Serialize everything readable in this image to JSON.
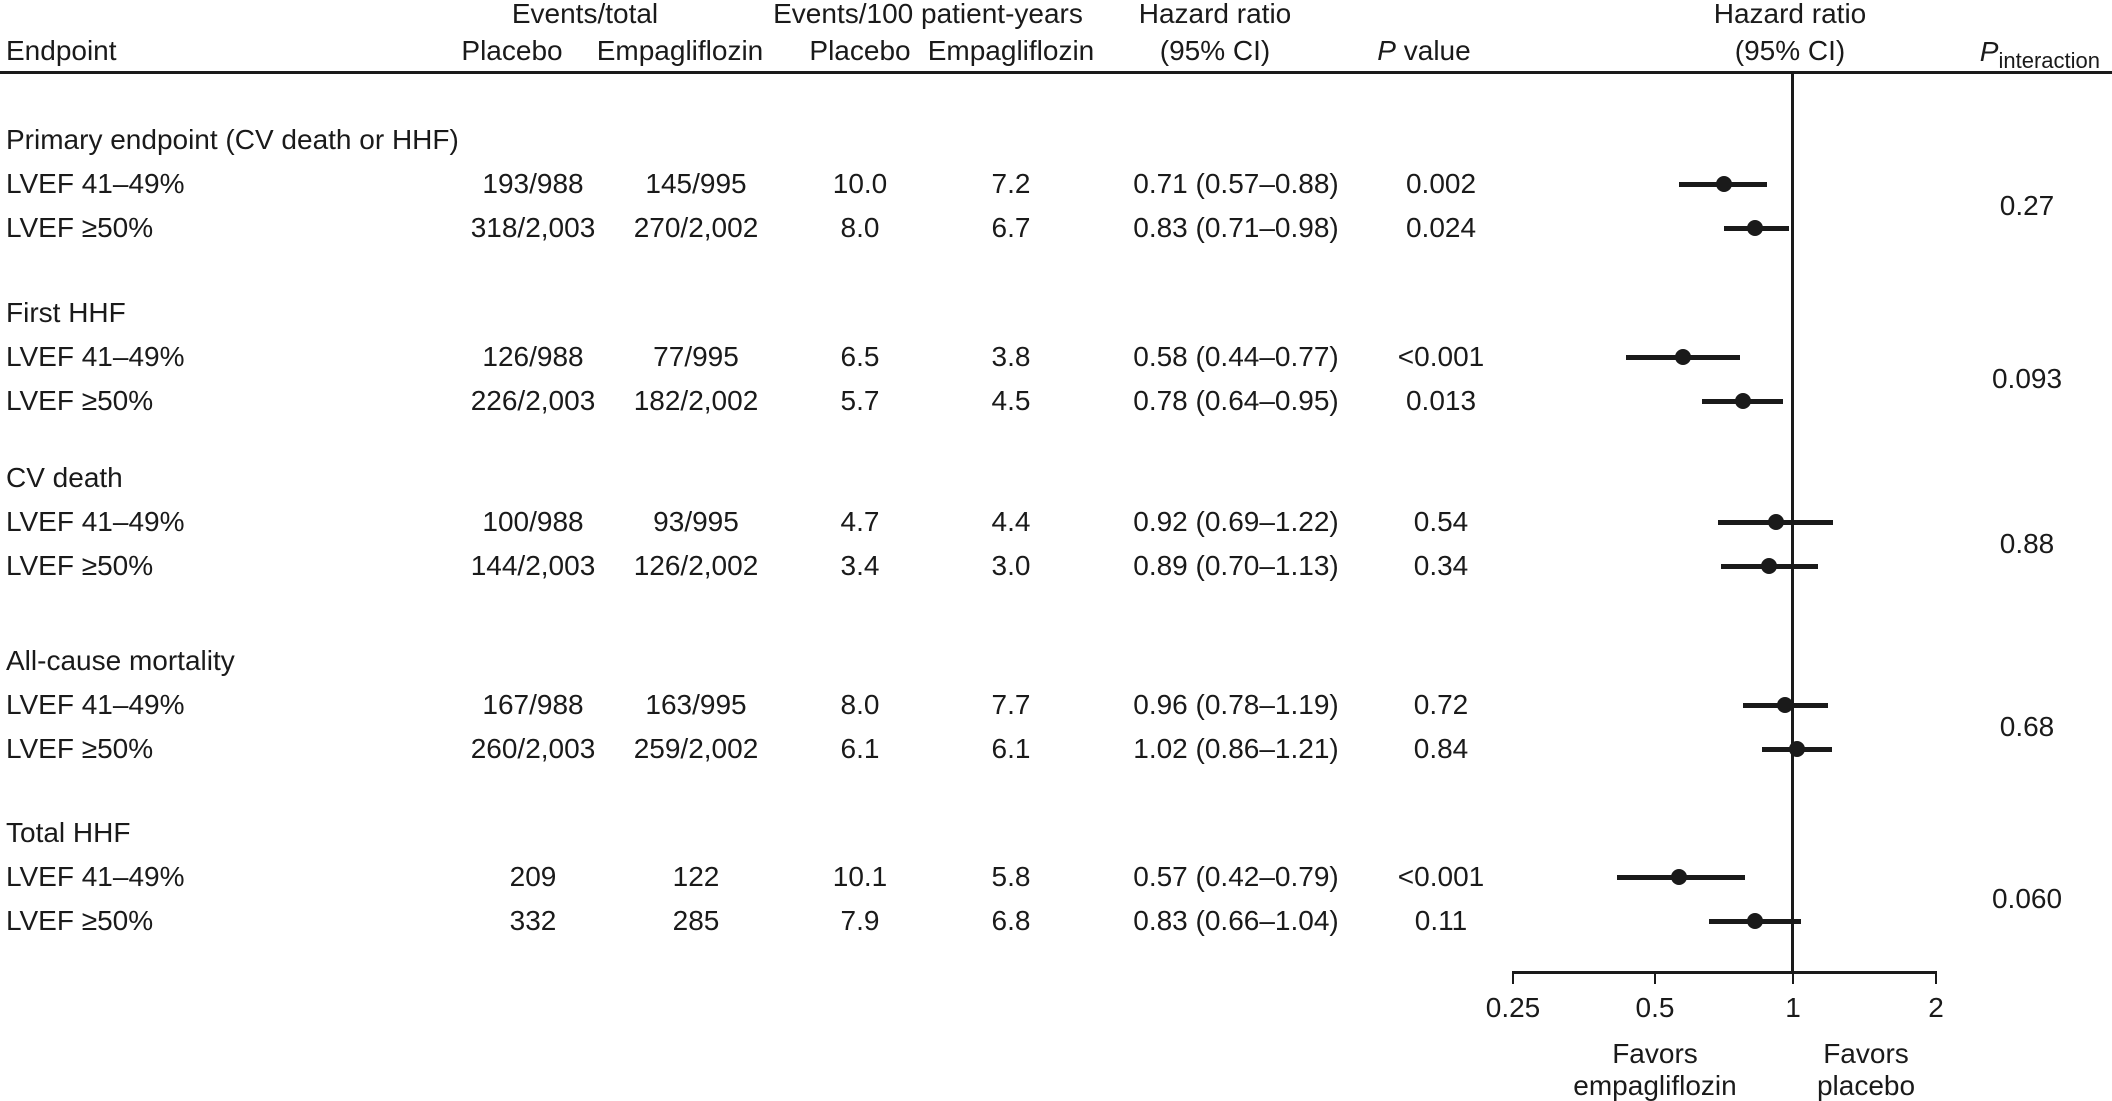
{
  "header": {
    "endpoint": "Endpoint",
    "events_total_group": "Events/total",
    "events_rate_group": "Events/100 patient-years",
    "placebo": "Placebo",
    "empagliflozin": "Empagliflozin",
    "hr_line1": "Hazard ratio",
    "hr_line2": "(95% CI)",
    "p_value": {
      "p": "P",
      "rest": " value"
    },
    "p_interaction": {
      "p": "P",
      "sub": "interaction"
    }
  },
  "chart_data": {
    "type": "forest",
    "plot_title_line1": "Hazard ratio",
    "plot_title_line2": "(95% CI)",
    "x_axis": {
      "scale": "log2",
      "ticks": [
        0.25,
        0.5,
        1,
        2
      ],
      "tick_labels": [
        "0.25",
        "0.5",
        "1",
        "2"
      ],
      "range": [
        0.25,
        2
      ],
      "reference_line": 1
    },
    "favors_left": "Favors empagliflozin",
    "favors_right": "Favors placebo",
    "sections": [
      {
        "title": "Primary endpoint (CV death or HHF)",
        "p_interaction": "0.27",
        "rows": [
          {
            "label": "LVEF 41–49%",
            "events_total_placebo": "193/988",
            "events_total_empagliflozin": "145/995",
            "rate_placebo": "10.0",
            "rate_empagliflozin": "7.2",
            "hr_text": "0.71 (0.57–0.88)",
            "p_value": "0.002",
            "hr": 0.71,
            "ci_low": 0.57,
            "ci_high": 0.88
          },
          {
            "label": "LVEF ≥50%",
            "events_total_placebo": "318/2,003",
            "events_total_empagliflozin": "270/2,002",
            "rate_placebo": "8.0",
            "rate_empagliflozin": "6.7",
            "hr_text": "0.83 (0.71–0.98)",
            "p_value": "0.024",
            "hr": 0.83,
            "ci_low": 0.71,
            "ci_high": 0.98
          }
        ]
      },
      {
        "title": "First HHF",
        "p_interaction": "0.093",
        "rows": [
          {
            "label": "LVEF 41–49%",
            "events_total_placebo": "126/988",
            "events_total_empagliflozin": "77/995",
            "rate_placebo": "6.5",
            "rate_empagliflozin": "3.8",
            "hr_text": "0.58 (0.44–0.77)",
            "p_value": "<0.001",
            "hr": 0.58,
            "ci_low": 0.44,
            "ci_high": 0.77
          },
          {
            "label": "LVEF ≥50%",
            "events_total_placebo": "226/2,003",
            "events_total_empagliflozin": "182/2,002",
            "rate_placebo": "5.7",
            "rate_empagliflozin": "4.5",
            "hr_text": "0.78 (0.64–0.95)",
            "p_value": "0.013",
            "hr": 0.78,
            "ci_low": 0.64,
            "ci_high": 0.95
          }
        ]
      },
      {
        "title": "CV death",
        "p_interaction": "0.88",
        "rows": [
          {
            "label": "LVEF 41–49%",
            "events_total_placebo": "100/988",
            "events_total_empagliflozin": "93/995",
            "rate_placebo": "4.7",
            "rate_empagliflozin": "4.4",
            "hr_text": "0.92 (0.69–1.22)",
            "p_value": "0.54",
            "hr": 0.92,
            "ci_low": 0.69,
            "ci_high": 1.22
          },
          {
            "label": "LVEF ≥50%",
            "events_total_placebo": "144/2,003",
            "events_total_empagliflozin": "126/2,002",
            "rate_placebo": "3.4",
            "rate_empagliflozin": "3.0",
            "hr_text": "0.89 (0.70–1.13)",
            "p_value": "0.34",
            "hr": 0.89,
            "ci_low": 0.7,
            "ci_high": 1.13
          }
        ]
      },
      {
        "title": "All-cause mortality",
        "p_interaction": "0.68",
        "rows": [
          {
            "label": "LVEF 41–49%",
            "events_total_placebo": "167/988",
            "events_total_empagliflozin": "163/995",
            "rate_placebo": "8.0",
            "rate_empagliflozin": "7.7",
            "hr_text": "0.96 (0.78–1.19)",
            "p_value": "0.72",
            "hr": 0.96,
            "ci_low": 0.78,
            "ci_high": 1.19
          },
          {
            "label": "LVEF ≥50%",
            "events_total_placebo": "260/2,003",
            "events_total_empagliflozin": "259/2,002",
            "rate_placebo": "6.1",
            "rate_empagliflozin": "6.1",
            "hr_text": "1.02 (0.86–1.21)",
            "p_value": "0.84",
            "hr": 1.02,
            "ci_low": 0.86,
            "ci_high": 1.21
          }
        ]
      },
      {
        "title": "Total HHF",
        "p_interaction": "0.060",
        "rows": [
          {
            "label": "LVEF 41–49%",
            "events_total_placebo": "209",
            "events_total_empagliflozin": "122",
            "rate_placebo": "10.1",
            "rate_empagliflozin": "5.8",
            "hr_text": "0.57 (0.42–0.79)",
            "p_value": "<0.001",
            "hr": 0.57,
            "ci_low": 0.42,
            "ci_high": 0.79
          },
          {
            "label": "LVEF ≥50%",
            "events_total_placebo": "332",
            "events_total_empagliflozin": "285",
            "rate_placebo": "7.9",
            "rate_empagliflozin": "6.8",
            "hr_text": "0.83 (0.66–1.04)",
            "p_value": "0.11",
            "hr": 0.83,
            "ci_low": 0.66,
            "ci_high": 1.04
          }
        ]
      }
    ]
  },
  "colors": {
    "ink": "#1a1a1a",
    "background": "#ffffff"
  }
}
